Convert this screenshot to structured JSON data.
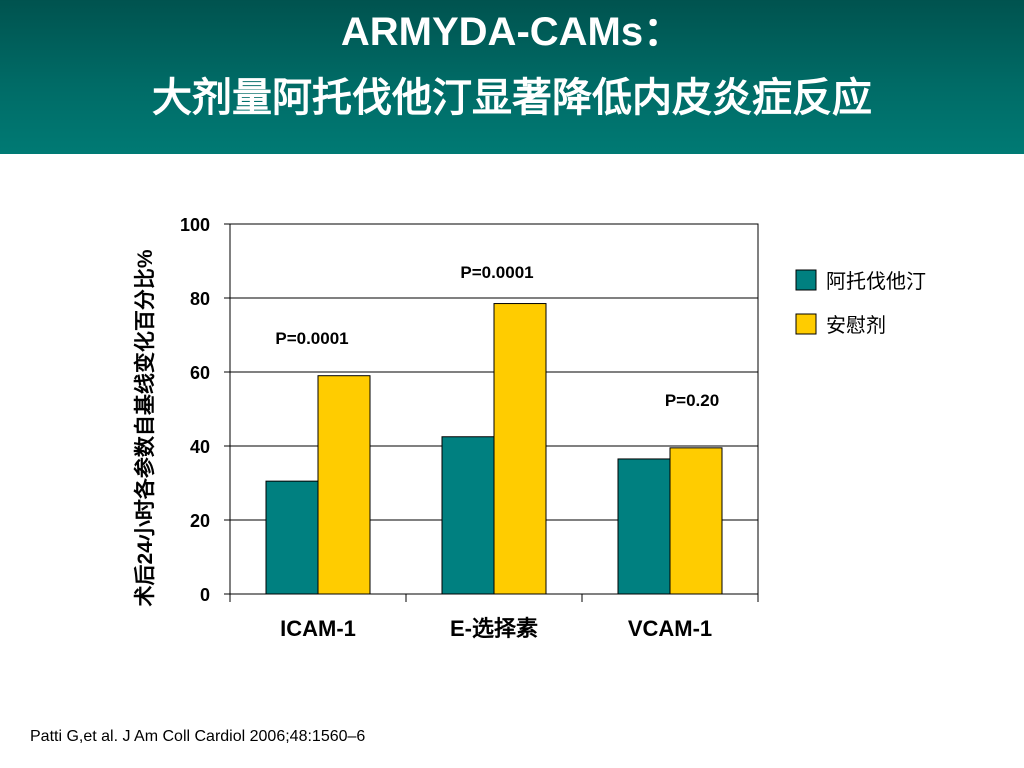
{
  "title": {
    "line1": "ARMYDA-CAMs：",
    "line2": "大剂量阿托伐他汀显著降低内皮炎症反应"
  },
  "chart_data": {
    "type": "bar",
    "categories": [
      "ICAM-1",
      "E-选择素",
      "VCAM-1"
    ],
    "series": [
      {
        "name": "阿托伐他汀",
        "color": "#008080",
        "values": [
          30.5,
          42.5,
          36.5
        ]
      },
      {
        "name": "安慰剂",
        "color": "#ffcc00",
        "values": [
          59,
          78.5,
          39.5
        ]
      }
    ],
    "ylabel": "术后24小时各参数自基线变化百分比%",
    "xlabel": "",
    "ylim": [
      0,
      100
    ],
    "yticks": [
      0,
      20,
      40,
      60,
      80,
      100
    ],
    "grid": true,
    "legend": "right",
    "annotations": [
      "P=0.0001",
      "P=0.0001",
      "P=0.20"
    ]
  },
  "citation": "Patti G,et al. J Am Coll Cardiol 2006;48:1560–6"
}
